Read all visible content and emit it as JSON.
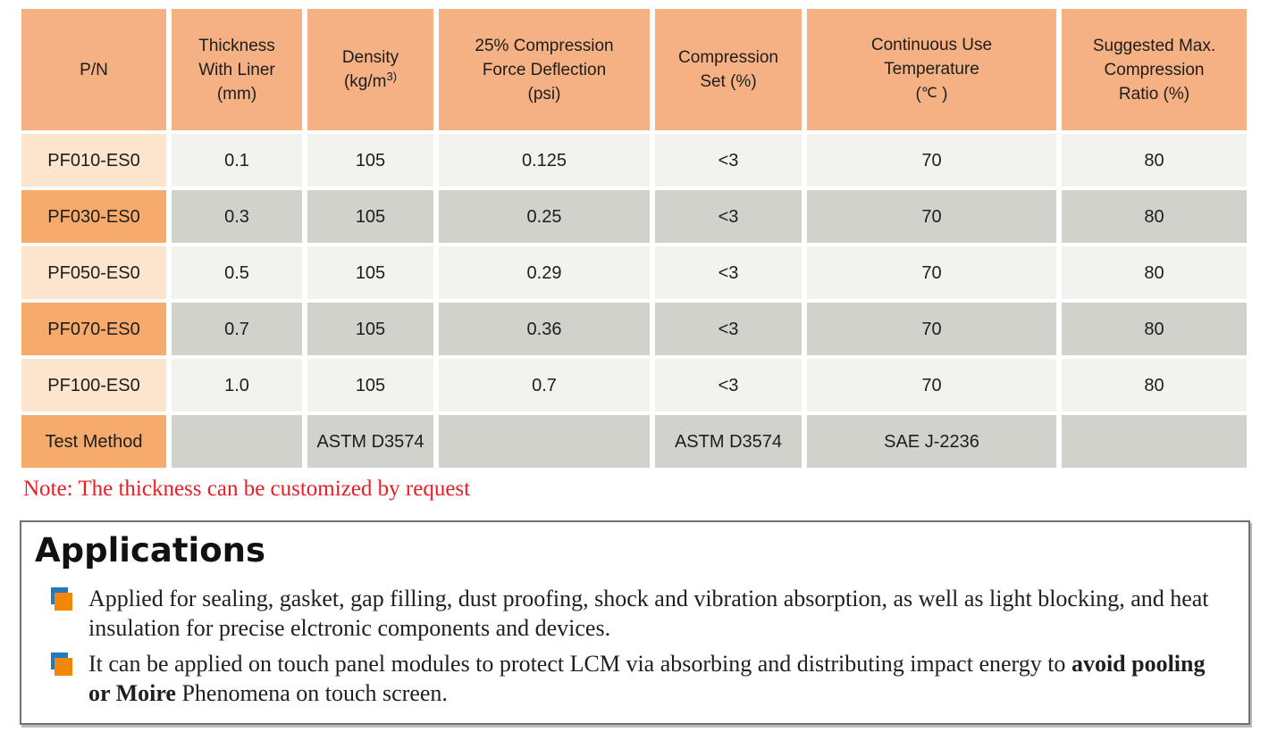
{
  "colors": {
    "header_bg": "#F5B183",
    "row_orange_bg": "#F6AB6D",
    "row_peach_bg": "#FCE4CD",
    "cell_light_bg": "#F2F2EE",
    "cell_gray_bg": "#D2D2CC",
    "note_red": "#ED1C24",
    "bullet_blue": "#2279BE",
    "bullet_orange": "#F28705",
    "box_border": "#6F7072",
    "text_dark": "#1D1D1B"
  },
  "table": {
    "header": {
      "pn": "P/N",
      "thickness_l1": "Thickness",
      "thickness_l2": "With Liner",
      "thickness_l3": "(mm)",
      "density_l1": "Density",
      "density_l2_main": "(kg/m",
      "density_l2_sup": "3)",
      "cfd_l1": "25% Compression",
      "cfd_l2": "Force Deflection",
      "cfd_l3": "(psi)",
      "compset_l1": "Compression",
      "compset_l2": "Set (%)",
      "temp_l1": "Continuous Use",
      "temp_l2": "Temperature",
      "temp_l3_open": "(",
      "temp_l3_symbol": "℃",
      "temp_l3_close": " )",
      "max_l1": "Suggested Max.",
      "max_l2": "Compression",
      "max_l3": "Ratio (%)"
    },
    "rows": [
      {
        "pn": "PF010-ES0",
        "thickness": "0.1",
        "density": "105",
        "cfd": "0.125",
        "compset": "<3",
        "temp": "70",
        "max": "80"
      },
      {
        "pn": "PF030-ES0",
        "thickness": "0.3",
        "density": "105",
        "cfd": "0.25",
        "compset": "<3",
        "temp": "70",
        "max": "80"
      },
      {
        "pn": "PF050-ES0",
        "thickness": "0.5",
        "density": "105",
        "cfd": "0.29",
        "compset": "<3",
        "temp": "70",
        "max": "80"
      },
      {
        "pn": "PF070-ES0",
        "thickness": "0.7",
        "density": "105",
        "cfd": "0.36",
        "compset": "<3",
        "temp": "70",
        "max": "80"
      },
      {
        "pn": "PF100-ES0",
        "thickness": "1.0",
        "density": "105",
        "cfd": "0.7",
        "compset": "<3",
        "temp": "70",
        "max": "80"
      }
    ],
    "test_method": {
      "pn": "Test Method",
      "thickness": "",
      "density": "ASTM D3574",
      "cfd": "",
      "compset": "ASTM D3574",
      "temp": "SAE J-2236",
      "max": ""
    }
  },
  "note": "Note: The thickness can be customized by request",
  "applications": {
    "title": "Applications",
    "item1_text": "Applied for sealing, gasket, gap filling, dust proofing, shock and vibration absorption, as well as light blocking, and heat insulation for precise elctronic components and devices.",
    "item2_pre": "It can be applied on touch panel modules to protect LCM via absorbing and distributing impact energy to ",
    "item2_bold": "avoid pooling or Moire",
    "item2_post": " Phenomena on touch screen."
  }
}
